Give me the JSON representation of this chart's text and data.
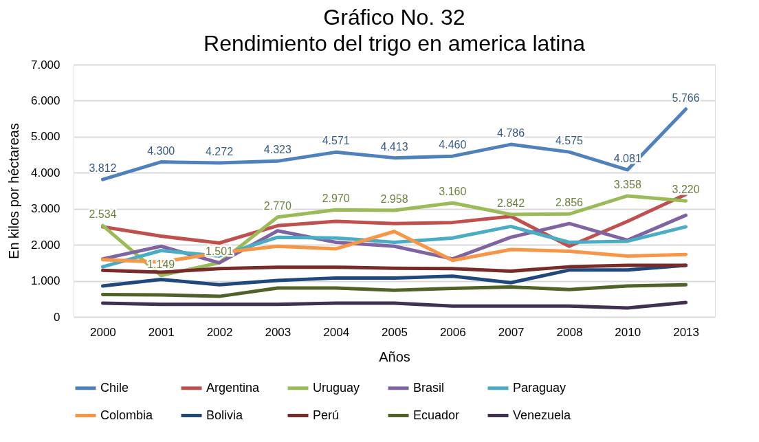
{
  "chart_data": {
    "type": "line",
    "title": "Gráfico No. 32",
    "subtitle": "Rendimiento del trigo en america latina",
    "xlabel": "Años",
    "ylabel": "En kilos por héctareas",
    "categories": [
      "2000",
      "2001",
      "2002",
      "2003",
      "2004",
      "2005",
      "2006",
      "2007",
      "2008",
      "2010",
      "2013"
    ],
    "ylim": [
      0,
      7000
    ],
    "yticks": [
      {
        "value": 0,
        "label": "0"
      },
      {
        "value": 1000,
        "label": "1.000"
      },
      {
        "value": 2000,
        "label": "2.000"
      },
      {
        "value": 3000,
        "label": "3.000"
      },
      {
        "value": 4000,
        "label": "4.000"
      },
      {
        "value": 5000,
        "label": "5.000"
      },
      {
        "value": 6000,
        "label": "6.000"
      },
      {
        "value": 7000,
        "label": "7.000"
      }
    ],
    "grid": "y",
    "legend": "bottom",
    "marker": "none",
    "line_style": "solid",
    "series": [
      {
        "name": "Chile",
        "color": "#4f81bd",
        "values": [
          3812,
          4300,
          4272,
          4323,
          4571,
          4413,
          4460,
          4786,
          4575,
          4081,
          5766
        ],
        "value_labels": [
          "3.812",
          "4.300",
          "4.272",
          "4.323",
          "4.571",
          "4.413",
          "4.460",
          "4.786",
          "4.575",
          "4.081",
          "5.766"
        ]
      },
      {
        "name": "Argentina",
        "color": "#c0504d",
        "values": [
          2500,
          2240,
          2050,
          2530,
          2650,
          2590,
          2620,
          2790,
          1960,
          2650,
          3400
        ]
      },
      {
        "name": "Uruguay",
        "color": "#9bbb59",
        "values": [
          2534,
          1149,
          1501,
          2770,
          2970,
          2958,
          3160,
          2842,
          2856,
          3358,
          3220
        ],
        "value_labels": [
          "2.534",
          "1.149",
          "1.501",
          "2.770",
          "2.970",
          "2.958",
          "3.160",
          "2.842",
          "2.856",
          "3.358",
          "3.220"
        ]
      },
      {
        "name": "Brasil",
        "color": "#8064a2",
        "values": [
          1610,
          1960,
          1500,
          2390,
          2070,
          1960,
          1610,
          2210,
          2590,
          2130,
          2820
        ]
      },
      {
        "name": "Paraguay",
        "color": "#4bacc6",
        "values": [
          1390,
          1840,
          1690,
          2210,
          2190,
          2070,
          2190,
          2510,
          2070,
          2100,
          2500
        ]
      },
      {
        "name": "Colombia",
        "color": "#f79646",
        "values": [
          1590,
          1520,
          1780,
          1960,
          1890,
          2370,
          1570,
          1870,
          1820,
          1690,
          1730
        ]
      },
      {
        "name": "Bolivia",
        "color": "#1f497d",
        "values": [
          860,
          1040,
          890,
          1010,
          1080,
          1080,
          1130,
          950,
          1300,
          1300,
          1430
        ]
      },
      {
        "name": "Perú",
        "color": "#772c2a",
        "values": [
          1290,
          1240,
          1340,
          1380,
          1380,
          1350,
          1340,
          1270,
          1390,
          1430,
          1430
        ]
      },
      {
        "name": "Ecuador",
        "color": "#4f6228",
        "values": [
          620,
          610,
          570,
          800,
          800,
          740,
          790,
          830,
          760,
          860,
          890
        ]
      },
      {
        "name": "Venezuela",
        "color": "#403152",
        "values": [
          380,
          350,
          350,
          350,
          380,
          380,
          300,
          300,
          300,
          250,
          400
        ]
      }
    ]
  }
}
